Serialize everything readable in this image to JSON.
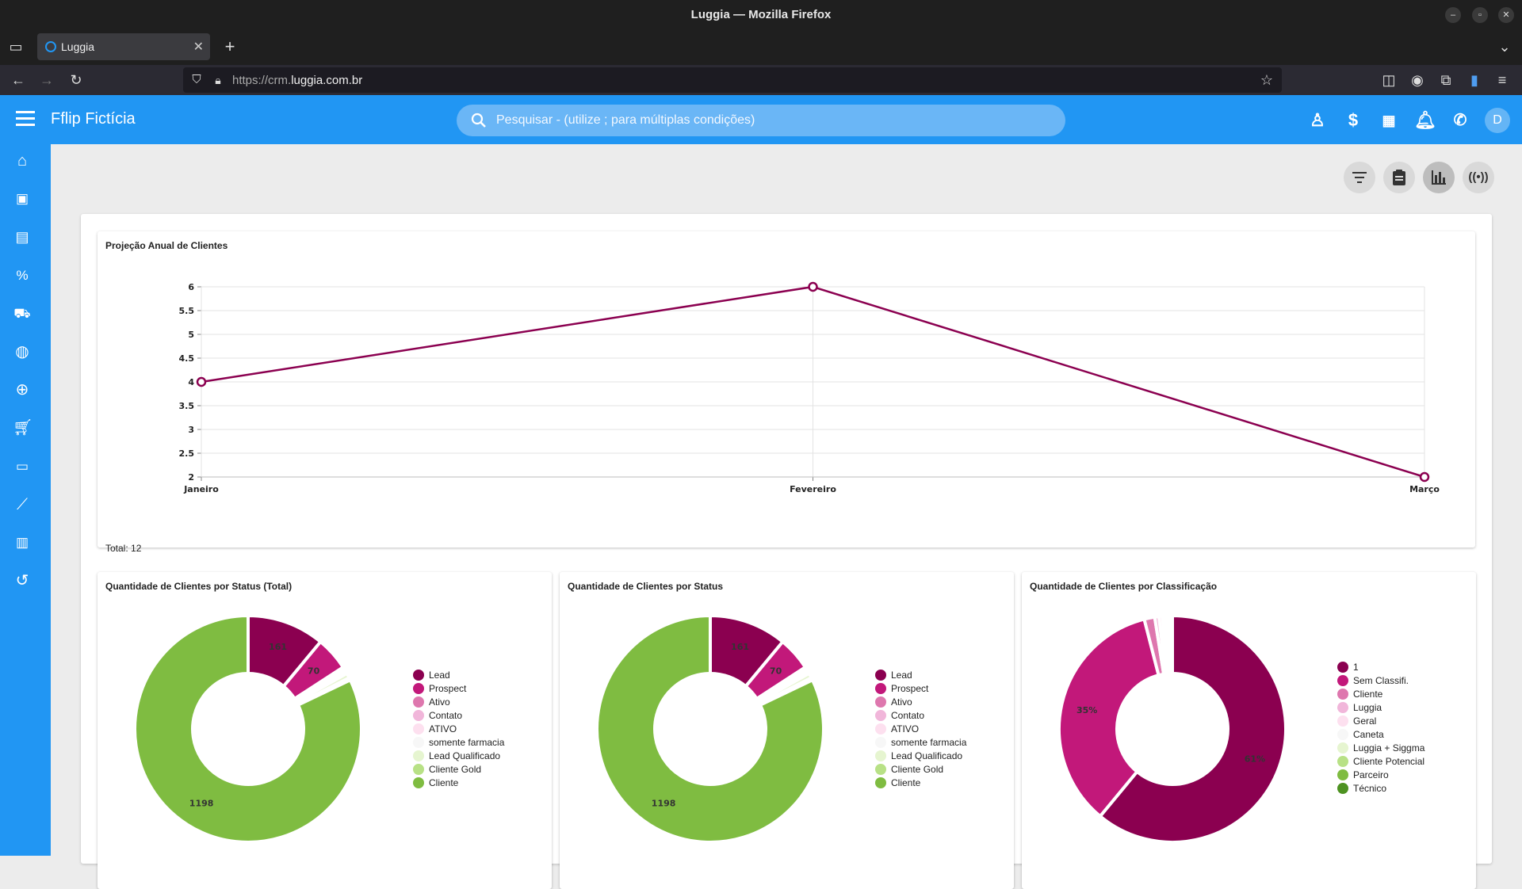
{
  "browser": {
    "window_title": "Luggia — Mozilla Firefox",
    "tab_title": "Luggia",
    "url_prefix": "https://crm.",
    "url_domain": "luggia.com.br"
  },
  "app": {
    "brand": "Fflip Fictícia",
    "search_placeholder": "Pesquisar - (utilize ; para múltiplas condições)",
    "avatar_letter": "D"
  },
  "sidebar": {
    "items": [
      "home-icon",
      "calendar-icon",
      "notebook-icon",
      "percent-ticket-icon",
      "car-icon",
      "globe-icon",
      "add-circle-icon",
      "cart-icon",
      "cash-icon",
      "chart-line-icon",
      "clipboard-icon",
      "history-icon"
    ]
  },
  "colors": {
    "primary": "#2196f3",
    "line": "#8b0050"
  },
  "line_card": {
    "title": "Projeção Anual de Clientes",
    "total": "Total: 12"
  },
  "donut1": {
    "title": "Quantidade de Clientes por Status (Total)"
  },
  "donut2": {
    "title": "Quantidade de Clientes por Status"
  },
  "donut3": {
    "title": "Quantidade de Clientes por Classificação"
  },
  "chart_data": [
    {
      "type": "line",
      "title": "Projeção Anual de Clientes",
      "categories": [
        "Janeiro",
        "Fevereiro",
        "Março"
      ],
      "values": [
        4,
        6,
        2
      ],
      "ylim": [
        2,
        6
      ],
      "yticks": [
        "2",
        "2.5",
        "3",
        "3.5",
        "4",
        "4.5",
        "5",
        "5.5",
        "6"
      ],
      "grid": true
    },
    {
      "type": "pie",
      "title": "Quantidade de Clientes por Status (Total)",
      "legend_position": "right",
      "slices": [
        {
          "name": "Lead",
          "value": 161,
          "color": "#8b0050",
          "label": "161"
        },
        {
          "name": "Prospect",
          "value": 70,
          "color": "#c2187a",
          "label": "70"
        },
        {
          "name": "Ativo",
          "value": 6,
          "color": "#de77ae",
          "label": ""
        },
        {
          "name": "Contato",
          "value": 4,
          "color": "#f1b6da",
          "label": ""
        },
        {
          "name": "ATIVO",
          "value": 3,
          "color": "#fde0ef",
          "label": ""
        },
        {
          "name": "somente farmacia",
          "value": 2,
          "color": "#f7f7f7",
          "label": ""
        },
        {
          "name": "Lead Qualificado",
          "value": 10,
          "color": "#e6f5d0",
          "label": ""
        },
        {
          "name": "Cliente Gold",
          "value": 5,
          "color": "#b8e186",
          "label": ""
        },
        {
          "name": "Cliente",
          "value": 1198,
          "color": "#7fbc41",
          "label": "1198"
        }
      ]
    },
    {
      "type": "pie",
      "title": "Quantidade de Clientes por Status",
      "legend_position": "right",
      "slices": [
        {
          "name": "Lead",
          "value": 161,
          "color": "#8b0050",
          "label": "161"
        },
        {
          "name": "Prospect",
          "value": 70,
          "color": "#c2187a",
          "label": "70"
        },
        {
          "name": "Ativo",
          "value": 6,
          "color": "#de77ae",
          "label": ""
        },
        {
          "name": "Contato",
          "value": 4,
          "color": "#f1b6da",
          "label": ""
        },
        {
          "name": "ATIVO",
          "value": 3,
          "color": "#fde0ef",
          "label": ""
        },
        {
          "name": "somente farmacia",
          "value": 2,
          "color": "#f7f7f7",
          "label": ""
        },
        {
          "name": "Lead Qualificado",
          "value": 10,
          "color": "#e6f5d0",
          "label": ""
        },
        {
          "name": "Cliente Gold",
          "value": 5,
          "color": "#b8e186",
          "label": ""
        },
        {
          "name": "Cliente",
          "value": 1198,
          "color": "#7fbc41",
          "label": "1198"
        }
      ]
    },
    {
      "type": "pie",
      "title": "Quantidade de Clientes por Classificação",
      "legend_position": "right",
      "slices": [
        {
          "name": "1",
          "value": 61,
          "color": "#8b0050",
          "label": "61%"
        },
        {
          "name": "Sem Classifi.",
          "value": 35,
          "color": "#c2187a",
          "label": "35%"
        },
        {
          "name": "Cliente",
          "value": 1.5,
          "color": "#de77ae",
          "label": ""
        },
        {
          "name": "Luggia",
          "value": 0.6,
          "color": "#f1b6da",
          "label": ""
        },
        {
          "name": "Geral",
          "value": 0.5,
          "color": "#fde0ef",
          "label": ""
        },
        {
          "name": "Caneta",
          "value": 0.4,
          "color": "#f7f7f7",
          "label": ""
        },
        {
          "name": "Luggia + Siggma",
          "value": 0.4,
          "color": "#e6f5d0",
          "label": ""
        },
        {
          "name": "Cliente Potencial",
          "value": 0.3,
          "color": "#b8e186",
          "label": ""
        },
        {
          "name": "Parceiro",
          "value": 0.2,
          "color": "#7fbc41",
          "label": ""
        },
        {
          "name": "Técnico",
          "value": 0.1,
          "color": "#4d9221",
          "label": ""
        }
      ]
    }
  ]
}
